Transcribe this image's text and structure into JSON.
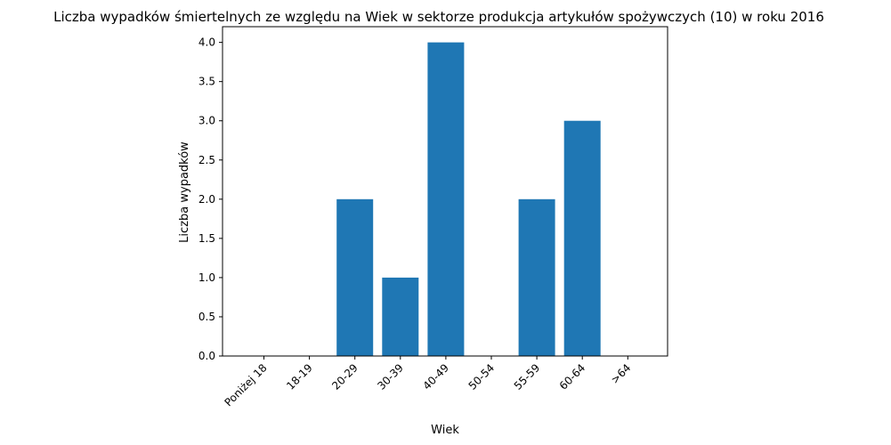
{
  "chart_data": {
    "type": "bar",
    "title": "Liczba wypadków śmiertelnych ze względu na Wiek w sektorze produkcja artykułów spożywczych  (10)   w roku 2016",
    "xlabel": "Wiek",
    "ylabel": "Liczba wypadków",
    "categories": [
      "Poniżej 18",
      "18-19",
      "20-29",
      "30-39",
      "40-49",
      "50-54",
      "55-59",
      "60-64",
      ">64"
    ],
    "values": [
      0,
      0,
      2,
      1,
      4,
      0,
      2,
      3,
      0
    ],
    "ylim": [
      0,
      4.2
    ],
    "yticks": [
      "0.0",
      "0.5",
      "1.0",
      "1.5",
      "2.0",
      "2.5",
      "3.0",
      "3.5",
      "4.0"
    ],
    "bar_color": "#1f77b4",
    "grid": false,
    "x_tick_rotation_deg": 45
  }
}
